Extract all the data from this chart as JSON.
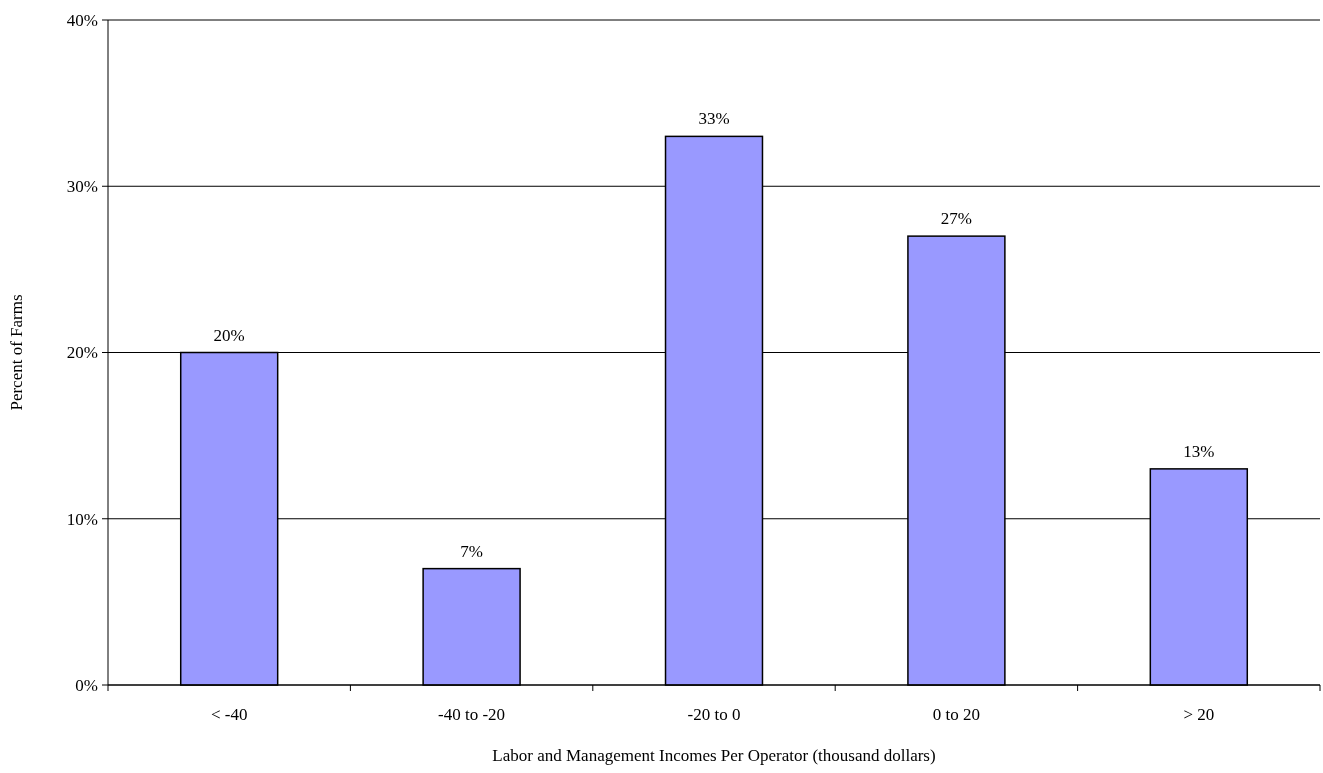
{
  "chart_data": {
    "type": "bar",
    "xlabel": "Labor and Management Incomes Per Operator (thousand dollars)",
    "ylabel": "Percent of Farms",
    "categories": [
      "< -40",
      "-40 to -20",
      "-20 to 0",
      "0 to 20",
      "> 20"
    ],
    "values": [
      20,
      7,
      33,
      27,
      13
    ],
    "value_labels": [
      "20%",
      "7%",
      "33%",
      "27%",
      "13%"
    ],
    "color": "#9999ff",
    "ylim": [
      0,
      40
    ],
    "yticks": [
      {
        "value": 0,
        "label": "0%"
      },
      {
        "value": 10,
        "label": "10%"
      },
      {
        "value": 20,
        "label": "20%"
      },
      {
        "value": 30,
        "label": "30%"
      },
      {
        "value": 40,
        "label": "40%"
      }
    ],
    "grid": "y"
  }
}
